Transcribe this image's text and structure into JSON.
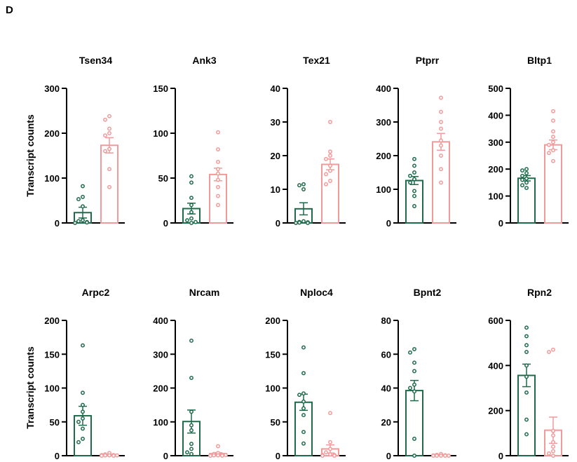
{
  "panel_label": "D",
  "colors": {
    "green": "#1d6b4a",
    "pink": "#f29a9a",
    "axis": "#000000"
  },
  "chart_data": [
    {
      "type": "bar",
      "title": "Tsen34",
      "ylabel": "Transcript counts",
      "ylim": [
        0,
        300
      ],
      "yticks": [
        0,
        100,
        200,
        300
      ],
      "groups": [
        {
          "mean": 23,
          "sem": 12,
          "points": [
            82,
            58,
            53,
            37,
            6,
            4,
            2,
            1,
            0
          ]
        },
        {
          "mean": 173,
          "sem": 17,
          "points": [
            238,
            230,
            210,
            200,
            195,
            165,
            160,
            120,
            80
          ]
        }
      ]
    },
    {
      "type": "bar",
      "title": "Ank3",
      "ylabel": "",
      "ylim": [
        0,
        150
      ],
      "yticks": [
        0,
        50,
        100,
        150
      ],
      "groups": [
        {
          "mean": 16,
          "sem": 6,
          "points": [
            52,
            45,
            28,
            20,
            12,
            5,
            3,
            1,
            0
          ]
        },
        {
          "mean": 54,
          "sem": 7,
          "points": [
            101,
            82,
            68,
            60,
            55,
            48,
            40,
            30,
            20
          ]
        }
      ]
    },
    {
      "type": "bar",
      "title": "Tex21",
      "ylabel": "",
      "ylim": [
        0,
        40
      ],
      "yticks": [
        0,
        10,
        20,
        30,
        40
      ],
      "groups": [
        {
          "mean": 4.2,
          "sem": 1.8,
          "points": [
            11.5,
            11.2,
            10,
            0.5,
            0.3,
            0.2,
            0.1,
            0,
            0
          ]
        },
        {
          "mean": 17.4,
          "sem": 1.6,
          "points": [
            30,
            21.2,
            20,
            19,
            17,
            15.5,
            14.5,
            12.5,
            11.5
          ]
        }
      ]
    },
    {
      "type": "bar",
      "title": "Ptprr",
      "ylabel": "",
      "ylim": [
        0,
        400
      ],
      "yticks": [
        0,
        100,
        200,
        300,
        400
      ],
      "groups": [
        {
          "mean": 126,
          "sem": 12,
          "points": [
            190,
            170,
            150,
            140,
            130,
            120,
            95,
            80,
            50
          ]
        },
        {
          "mean": 241,
          "sem": 25,
          "points": [
            372,
            330,
            300,
            280,
            245,
            230,
            200,
            160,
            120
          ]
        }
      ]
    },
    {
      "type": "bar",
      "title": "Bltp1",
      "ylabel": "",
      "ylim": [
        0,
        500
      ],
      "yticks": [
        0,
        100,
        200,
        300,
        400,
        500
      ],
      "groups": [
        {
          "mean": 166,
          "sem": 10,
          "points": [
            200,
            195,
            185,
            175,
            165,
            160,
            150,
            140,
            130
          ]
        },
        {
          "mean": 290,
          "sem": 18,
          "points": [
            415,
            380,
            340,
            320,
            300,
            290,
            270,
            260,
            230
          ]
        }
      ]
    },
    {
      "type": "bar",
      "title": "Arpc2",
      "ylabel": "Transcript counts",
      "ylim": [
        0,
        200
      ],
      "yticks": [
        0,
        50,
        100,
        150,
        200
      ],
      "groups": [
        {
          "mean": 59,
          "sem": 14,
          "points": [
            163,
            93,
            75,
            65,
            55,
            50,
            40,
            25,
            20
          ]
        },
        {
          "mean": 1.5,
          "sem": 0.5,
          "points": [
            4,
            2,
            1,
            1,
            0.5,
            0.5,
            0.5,
            0,
            0
          ]
        }
      ]
    },
    {
      "type": "bar",
      "title": "Nrcam",
      "ylabel": "",
      "ylim": [
        0,
        400
      ],
      "yticks": [
        0,
        100,
        200,
        300,
        400
      ],
      "groups": [
        {
          "mean": 101,
          "sem": 34,
          "points": [
            340,
            230,
            130,
            90,
            75,
            35,
            20,
            10,
            5
          ]
        },
        {
          "mean": 6,
          "sem": 3,
          "points": [
            28,
            8,
            5,
            3,
            2,
            1,
            1,
            0,
            0
          ]
        }
      ]
    },
    {
      "type": "bar",
      "title": "Nploc4",
      "ylabel": "",
      "ylim": [
        0,
        200
      ],
      "yticks": [
        0,
        50,
        100,
        150,
        200
      ],
      "groups": [
        {
          "mean": 79,
          "sem": 12,
          "points": [
            160,
            122,
            92,
            90,
            80,
            70,
            60,
            35,
            18
          ]
        },
        {
          "mean": 10,
          "sem": 6,
          "points": [
            63,
            20,
            10,
            5,
            2,
            1,
            1,
            0,
            0
          ]
        }
      ]
    },
    {
      "type": "bar",
      "title": "Bpnt2",
      "ylabel": "",
      "ylim": [
        0,
        80
      ],
      "yticks": [
        0,
        20,
        40,
        60,
        80
      ],
      "groups": [
        {
          "mean": 38.5,
          "sem": 6,
          "points": [
            63,
            61,
            55,
            50,
            42,
            40,
            38,
            10,
            0
          ]
        },
        {
          "mean": 0.3,
          "sem": 0.3,
          "points": [
            1,
            0.5,
            0.3,
            0.2,
            0,
            0,
            0,
            0,
            0
          ]
        }
      ]
    },
    {
      "type": "bar",
      "title": "Rpn2",
      "ylabel": "",
      "ylim": [
        0,
        600
      ],
      "yticks": [
        0,
        200,
        400,
        600
      ],
      "groups": [
        {
          "mean": 356,
          "sem": 50,
          "points": [
            568,
            530,
            490,
            460,
            400,
            350,
            280,
            160,
            95
          ]
        },
        {
          "mean": 113,
          "sem": 58,
          "points": [
            470,
            460,
            110,
            90,
            60,
            40,
            20,
            10,
            0
          ]
        }
      ]
    }
  ]
}
